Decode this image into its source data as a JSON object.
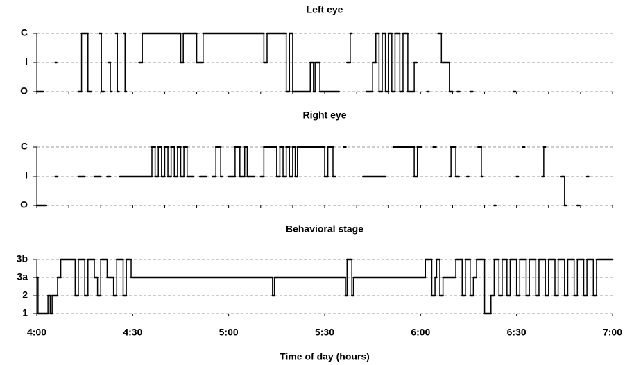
{
  "chart_data": [
    {
      "type": "step",
      "title": "Left eye",
      "x": [
        240,
        242,
        245.8,
        246.2,
        253,
        254,
        256,
        257,
        259.5,
        260.2,
        261,
        262.5,
        263,
        263.5,
        264.7,
        265.2,
        265.7,
        267.2,
        267.6,
        268,
        272,
        273,
        285,
        285.8,
        290,
        292,
        311,
        312,
        318,
        319,
        320,
        325.5,
        326.5,
        327,
        328.5,
        334.5,
        337,
        338,
        338.5,
        343,
        345,
        346,
        347,
        348,
        349,
        350,
        351,
        352,
        353.5,
        354.5,
        356,
        358,
        358.8,
        362,
        362.6,
        365.5,
        366.5,
        369,
        370,
        371.5,
        372.2,
        375.5,
        376.3,
        389,
        389.7
      ],
      "values": [
        0,
        null,
        1,
        null,
        0,
        2,
        0,
        null,
        2,
        0,
        null,
        1,
        0,
        null,
        2,
        0,
        null,
        2,
        0,
        null,
        1,
        2,
        1,
        2,
        1,
        2,
        1,
        2,
        0,
        2,
        0,
        1,
        0,
        1,
        0,
        null,
        1,
        2,
        null,
        0,
        1,
        2,
        0,
        2,
        0,
        2,
        0,
        2,
        0,
        2,
        0,
        1,
        null,
        0,
        null,
        2,
        1,
        0,
        null,
        0,
        null,
        0,
        null,
        0,
        null
      ],
      "color": "#000000",
      "xlim": [
        240,
        420
      ],
      "xticks": [
        240,
        250,
        260,
        270,
        280,
        290,
        300,
        310,
        320,
        330,
        340,
        350,
        360,
        370,
        380,
        390,
        400,
        410,
        420
      ],
      "ylim": [
        0,
        2
      ],
      "yticks": [
        {
          "value": 0,
          "label": "O"
        },
        {
          "value": 1,
          "label": "I"
        },
        {
          "value": 2,
          "label": "C"
        }
      ],
      "grid": true
    },
    {
      "type": "step",
      "title": "Right eye",
      "x": [
        240,
        243,
        245.8,
        246.5,
        253,
        255,
        258,
        260,
        262,
        263,
        266,
        276,
        277,
        278,
        279,
        280,
        281,
        282,
        283,
        284,
        285,
        286,
        287,
        289,
        291,
        293,
        295,
        296,
        297.5,
        298,
        300,
        302,
        303.5,
        305,
        305.8,
        308,
        310,
        311,
        315,
        316,
        317,
        318,
        319,
        320,
        320.8,
        321.5,
        330,
        331,
        332.6,
        333.3,
        336,
        336.6,
        342,
        349,
        351.5,
        358,
        359,
        360.3,
        364,
        364.8,
        369,
        369.5,
        371,
        372,
        374.5,
        375,
        378,
        379,
        379.5,
        383,
        383.5,
        390,
        390.5,
        392,
        392.5,
        398,
        398.5,
        399,
        404,
        405,
        405.5,
        409,
        409.6,
        412,
        412.5
      ],
      "values": [
        0,
        null,
        1,
        null,
        1,
        null,
        1,
        null,
        1,
        null,
        1,
        2,
        1,
        2,
        1,
        2,
        1,
        2,
        1,
        2,
        1,
        2,
        1,
        null,
        1,
        null,
        1,
        2,
        1,
        null,
        1,
        2,
        1,
        2,
        1,
        null,
        1,
        2,
        1,
        2,
        1,
        2,
        1,
        2,
        1,
        2,
        1,
        2,
        1,
        null,
        2,
        null,
        1,
        null,
        2,
        1,
        2,
        null,
        2,
        null,
        1,
        2,
        1,
        null,
        1,
        null,
        2,
        1,
        null,
        0,
        null,
        1,
        null,
        2,
        null,
        1,
        2,
        null,
        1,
        0,
        null,
        0,
        null,
        1,
        null
      ],
      "color": "#000000",
      "xlim": [
        240,
        420
      ],
      "xticks": [
        240,
        250,
        260,
        270,
        280,
        290,
        300,
        310,
        320,
        330,
        340,
        350,
        360,
        370,
        380,
        390,
        400,
        410,
        420
      ],
      "ylim": [
        0,
        2
      ],
      "yticks": [
        {
          "value": 0,
          "label": "O"
        },
        {
          "value": 1,
          "label": "I"
        },
        {
          "value": 2,
          "label": "C"
        }
      ],
      "grid": true
    },
    {
      "type": "step",
      "title": "Behavioral stage",
      "x_label": "Time of day (hours)",
      "x": [
        240,
        240.4,
        243.5,
        244.2,
        244.8,
        246.5,
        247.5,
        252,
        253,
        255,
        256,
        258,
        259,
        260,
        262,
        264,
        265,
        267,
        268,
        269.5,
        313.7,
        314.3,
        336.5,
        337,
        338.5,
        339,
        361.5,
        363.5,
        364.5,
        365,
        366,
        367,
        371,
        373,
        374,
        375.5,
        376.5,
        377.5,
        380,
        382,
        383,
        384.5,
        385.5,
        387,
        388,
        390,
        391,
        393,
        394,
        396,
        397,
        399,
        400,
        402,
        403,
        405,
        406,
        408,
        409,
        411,
        412,
        414,
        415,
        420
      ],
      "values": [
        3,
        1,
        2,
        1,
        2,
        3,
        4,
        2,
        4,
        2,
        4,
        3,
        2,
        4,
        3,
        2,
        4,
        2,
        4,
        3,
        2,
        3,
        2,
        4,
        2,
        3,
        4,
        2,
        3,
        4,
        2,
        3,
        4,
        2,
        4,
        2,
        3,
        4,
        1,
        2,
        4,
        2,
        4,
        2,
        4,
        2,
        4,
        2,
        4,
        2,
        4,
        2,
        4,
        2,
        4,
        2,
        4,
        2,
        4,
        2,
        4,
        2,
        4,
        null
      ],
      "color": "#000000",
      "xlim": [
        240,
        420
      ],
      "xticks": [
        {
          "value": 240,
          "label": "4:00"
        },
        {
          "value": 270,
          "label": "4:30"
        },
        {
          "value": 300,
          "label": "5:00"
        },
        {
          "value": 330,
          "label": "5:30"
        },
        {
          "value": 360,
          "label": "6:00"
        },
        {
          "value": 390,
          "label": "6:30"
        },
        {
          "value": 420,
          "label": "7:00"
        }
      ],
      "ylim": [
        1,
        4
      ],
      "yticks": [
        {
          "value": 1,
          "label": "1"
        },
        {
          "value": 2,
          "label": "2"
        },
        {
          "value": 3,
          "label": "3a"
        },
        {
          "value": 4,
          "label": "3b"
        }
      ],
      "grid": true
    }
  ]
}
